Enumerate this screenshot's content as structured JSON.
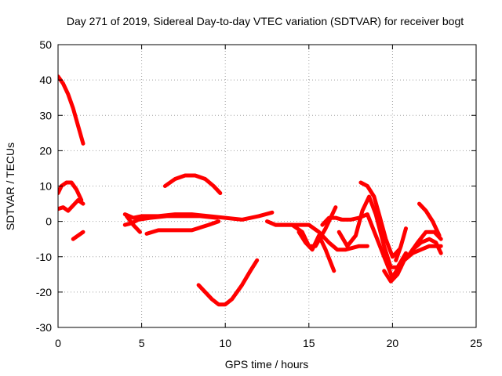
{
  "chart_data": {
    "type": "line",
    "title": "Day 271 of 2019, Sidereal Day-to-day VTEC variation (SDTVAR) for receiver bogt",
    "xlabel": "GPS time / hours",
    "ylabel": "SDTVAR / TECUs",
    "xlim": [
      0,
      25
    ],
    "ylim": [
      -30,
      50
    ],
    "xticks": [
      0,
      5,
      10,
      15,
      20,
      25
    ],
    "yticks": [
      -30,
      -20,
      -10,
      0,
      10,
      20,
      30,
      40,
      50
    ],
    "xtick_labels": [
      "0",
      "5",
      "10",
      "15",
      "20",
      "25"
    ],
    "ytick_labels": [
      "-30",
      "-20",
      "-10",
      "0",
      "10",
      "20",
      "30",
      "40",
      "50"
    ],
    "grid": true,
    "color": "#ff0000",
    "series": [
      {
        "name": "s1",
        "x": [
          0.0,
          0.3,
          0.6,
          0.9,
          1.2,
          1.5
        ],
        "y": [
          41,
          39,
          36,
          32,
          27,
          22
        ]
      },
      {
        "name": "s2",
        "x": [
          0.0,
          0.2,
          0.5,
          0.8,
          1.1,
          1.4
        ],
        "y": [
          8,
          10,
          11,
          11,
          9,
          6
        ]
      },
      {
        "name": "s3",
        "x": [
          0.0,
          0.3,
          0.6,
          0.9,
          1.2,
          1.5
        ],
        "y": [
          3.5,
          4,
          3,
          4.5,
          6,
          5
        ]
      },
      {
        "name": "s4",
        "x": [
          0.9,
          1.2,
          1.5
        ],
        "y": [
          -5,
          -4,
          -3
        ]
      },
      {
        "name": "s5",
        "x": [
          4.0,
          4.5,
          5.0,
          6.0,
          7.0,
          8.0,
          9.0,
          10.0,
          11.0,
          12.0,
          12.8
        ],
        "y": [
          2,
          1,
          1.5,
          1.5,
          2,
          2,
          1.5,
          1,
          0.5,
          1.5,
          2.5
        ]
      },
      {
        "name": "s6",
        "x": [
          4.0,
          4.4,
          4.8,
          5.5,
          6.5,
          7.5,
          8.5,
          9.5
        ],
        "y": [
          -1,
          -0.5,
          0.5,
          1,
          1.5,
          1.5,
          1.5,
          1
        ]
      },
      {
        "name": "s7",
        "x": [
          4.1,
          4.5,
          4.9
        ],
        "y": [
          1.5,
          -1,
          -3
        ]
      },
      {
        "name": "s8",
        "x": [
          5.3,
          6.0,
          7.0,
          8.0,
          9.0,
          9.6
        ],
        "y": [
          -3.5,
          -2.5,
          -2.5,
          -2.5,
          -1,
          0
        ]
      },
      {
        "name": "s9",
        "x": [
          6.4,
          7.0,
          7.6,
          8.2,
          8.8,
          9.3,
          9.7
        ],
        "y": [
          10,
          12,
          13,
          13,
          12,
          10,
          8
        ]
      },
      {
        "name": "s10",
        "x": [
          8.4,
          8.8,
          9.2,
          9.6,
          10.0,
          10.4,
          11.0,
          11.5,
          11.9
        ],
        "y": [
          -18,
          -20,
          -22,
          -23.5,
          -23.5,
          -22,
          -18,
          -14,
          -11
        ]
      },
      {
        "name": "s11",
        "x": [
          12.5,
          13.0,
          14.0,
          15.0,
          15.6,
          16.2,
          16.7,
          17.2,
          18.0,
          18.5
        ],
        "y": [
          0,
          -1,
          -1,
          -1,
          -3,
          -6,
          -8,
          -8,
          -7,
          -7
        ]
      },
      {
        "name": "s12",
        "x": [
          13.0,
          14.0,
          14.6,
          15.0,
          15.4,
          16.0,
          16.6
        ],
        "y": [
          -1,
          -1,
          -3,
          -7,
          -7,
          -2,
          4
        ]
      },
      {
        "name": "s13",
        "x": [
          14.4,
          14.8,
          15.2,
          15.6,
          16.0,
          16.5
        ],
        "y": [
          -3,
          -6,
          -8,
          -4,
          -8,
          -14
        ]
      },
      {
        "name": "s14",
        "x": [
          15.8,
          16.2,
          16.6,
          17.0,
          17.5,
          18.0,
          18.5,
          19.0,
          19.5,
          20.0,
          20.5
        ],
        "y": [
          -1,
          1,
          1,
          0.5,
          0.5,
          1,
          2,
          -4,
          -10,
          -16,
          -13
        ]
      },
      {
        "name": "s15",
        "x": [
          16.8,
          17.3,
          17.8,
          18.2,
          18.6,
          19.0,
          19.5,
          19.9,
          20.3,
          20.8
        ],
        "y": [
          -3,
          -7,
          -4,
          3,
          7,
          2,
          -7,
          -13,
          -13,
          -9
        ]
      },
      {
        "name": "s16",
        "x": [
          18.1,
          18.5,
          18.9,
          19.2,
          19.6,
          20.0,
          20.4
        ],
        "y": [
          11,
          10,
          7,
          2,
          -5,
          -10,
          -8
        ]
      },
      {
        "name": "s17",
        "x": [
          19.5,
          19.9,
          20.3,
          20.7,
          21.2,
          21.7,
          22.2,
          22.6,
          22.9
        ],
        "y": [
          -14,
          -17,
          -15,
          -11,
          -9,
          -8,
          -7,
          -7,
          -7
        ]
      },
      {
        "name": "s18",
        "x": [
          20.1,
          20.5,
          20.9,
          21.5,
          22.0,
          22.5,
          22.9
        ],
        "y": [
          -15,
          -12,
          -10,
          -6,
          -3,
          -3,
          -5
        ]
      },
      {
        "name": "s19",
        "x": [
          20.2,
          20.5,
          20.8
        ],
        "y": [
          -11,
          -7,
          -2
        ]
      },
      {
        "name": "s20",
        "x": [
          21.6,
          22.0,
          22.4,
          22.8
        ],
        "y": [
          5,
          3,
          0,
          -4
        ]
      },
      {
        "name": "s21",
        "x": [
          21.2,
          21.7,
          22.2,
          22.6,
          22.9
        ],
        "y": [
          -8,
          -6,
          -5,
          -6,
          -9
        ]
      }
    ]
  }
}
